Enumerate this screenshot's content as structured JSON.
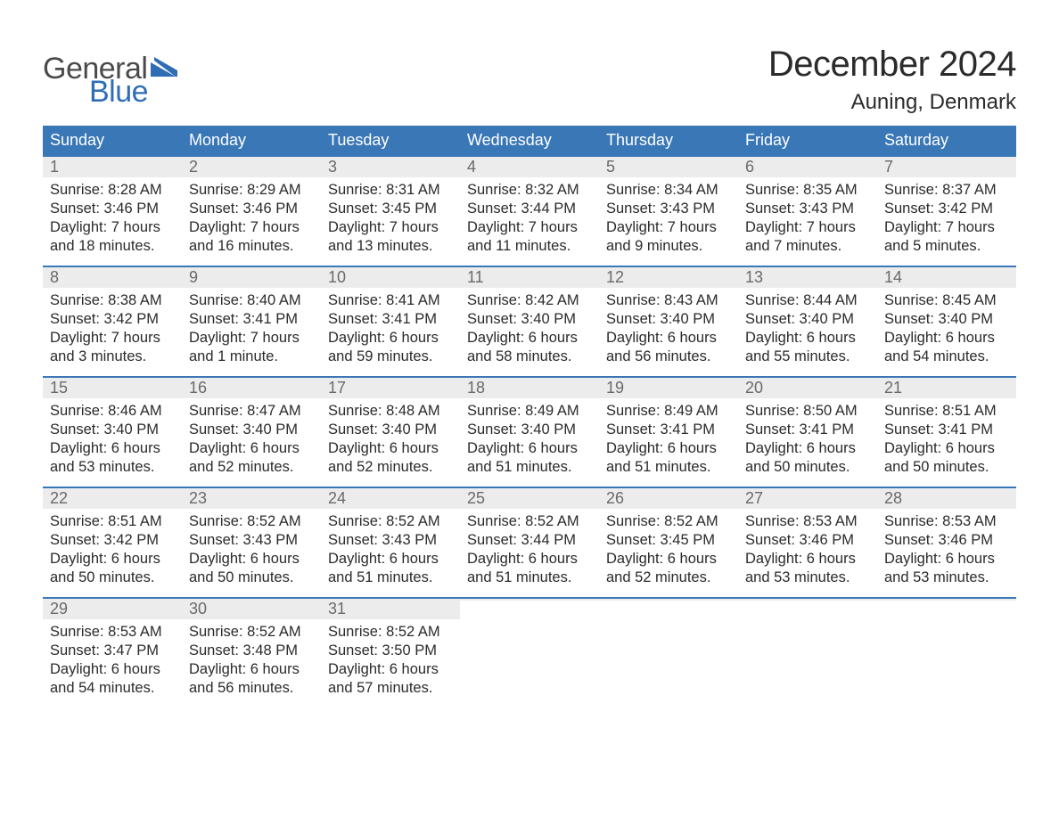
{
  "brand": {
    "word1": "General",
    "word2": "Blue",
    "flag_color": "#2f6eb5",
    "text_gray": "#4a4a4a"
  },
  "title": "December 2024",
  "location": "Auning, Denmark",
  "colors": {
    "header_bg": "#3a77b7",
    "header_text": "#ffffff",
    "daynum_bg": "#ececec",
    "daynum_text": "#6a6a6a",
    "body_text": "#2b2b2b",
    "week_border": "#3a77b7",
    "page_bg": "#ffffff"
  },
  "weekdays": [
    "Sunday",
    "Monday",
    "Tuesday",
    "Wednesday",
    "Thursday",
    "Friday",
    "Saturday"
  ],
  "weeks": [
    [
      {
        "n": "1",
        "sunrise": "8:28 AM",
        "sunset": "3:46 PM",
        "daylight": "7 hours and 18 minutes."
      },
      {
        "n": "2",
        "sunrise": "8:29 AM",
        "sunset": "3:46 PM",
        "daylight": "7 hours and 16 minutes."
      },
      {
        "n": "3",
        "sunrise": "8:31 AM",
        "sunset": "3:45 PM",
        "daylight": "7 hours and 13 minutes."
      },
      {
        "n": "4",
        "sunrise": "8:32 AM",
        "sunset": "3:44 PM",
        "daylight": "7 hours and 11 minutes."
      },
      {
        "n": "5",
        "sunrise": "8:34 AM",
        "sunset": "3:43 PM",
        "daylight": "7 hours and 9 minutes."
      },
      {
        "n": "6",
        "sunrise": "8:35 AM",
        "sunset": "3:43 PM",
        "daylight": "7 hours and 7 minutes."
      },
      {
        "n": "7",
        "sunrise": "8:37 AM",
        "sunset": "3:42 PM",
        "daylight": "7 hours and 5 minutes."
      }
    ],
    [
      {
        "n": "8",
        "sunrise": "8:38 AM",
        "sunset": "3:42 PM",
        "daylight": "7 hours and 3 minutes."
      },
      {
        "n": "9",
        "sunrise": "8:40 AM",
        "sunset": "3:41 PM",
        "daylight": "7 hours and 1 minute."
      },
      {
        "n": "10",
        "sunrise": "8:41 AM",
        "sunset": "3:41 PM",
        "daylight": "6 hours and 59 minutes."
      },
      {
        "n": "11",
        "sunrise": "8:42 AM",
        "sunset": "3:40 PM",
        "daylight": "6 hours and 58 minutes."
      },
      {
        "n": "12",
        "sunrise": "8:43 AM",
        "sunset": "3:40 PM",
        "daylight": "6 hours and 56 minutes."
      },
      {
        "n": "13",
        "sunrise": "8:44 AM",
        "sunset": "3:40 PM",
        "daylight": "6 hours and 55 minutes."
      },
      {
        "n": "14",
        "sunrise": "8:45 AM",
        "sunset": "3:40 PM",
        "daylight": "6 hours and 54 minutes."
      }
    ],
    [
      {
        "n": "15",
        "sunrise": "8:46 AM",
        "sunset": "3:40 PM",
        "daylight": "6 hours and 53 minutes."
      },
      {
        "n": "16",
        "sunrise": "8:47 AM",
        "sunset": "3:40 PM",
        "daylight": "6 hours and 52 minutes."
      },
      {
        "n": "17",
        "sunrise": "8:48 AM",
        "sunset": "3:40 PM",
        "daylight": "6 hours and 52 minutes."
      },
      {
        "n": "18",
        "sunrise": "8:49 AM",
        "sunset": "3:40 PM",
        "daylight": "6 hours and 51 minutes."
      },
      {
        "n": "19",
        "sunrise": "8:49 AM",
        "sunset": "3:41 PM",
        "daylight": "6 hours and 51 minutes."
      },
      {
        "n": "20",
        "sunrise": "8:50 AM",
        "sunset": "3:41 PM",
        "daylight": "6 hours and 50 minutes."
      },
      {
        "n": "21",
        "sunrise": "8:51 AM",
        "sunset": "3:41 PM",
        "daylight": "6 hours and 50 minutes."
      }
    ],
    [
      {
        "n": "22",
        "sunrise": "8:51 AM",
        "sunset": "3:42 PM",
        "daylight": "6 hours and 50 minutes."
      },
      {
        "n": "23",
        "sunrise": "8:52 AM",
        "sunset": "3:43 PM",
        "daylight": "6 hours and 50 minutes."
      },
      {
        "n": "24",
        "sunrise": "8:52 AM",
        "sunset": "3:43 PM",
        "daylight": "6 hours and 51 minutes."
      },
      {
        "n": "25",
        "sunrise": "8:52 AM",
        "sunset": "3:44 PM",
        "daylight": "6 hours and 51 minutes."
      },
      {
        "n": "26",
        "sunrise": "8:52 AM",
        "sunset": "3:45 PM",
        "daylight": "6 hours and 52 minutes."
      },
      {
        "n": "27",
        "sunrise": "8:53 AM",
        "sunset": "3:46 PM",
        "daylight": "6 hours and 53 minutes."
      },
      {
        "n": "28",
        "sunrise": "8:53 AM",
        "sunset": "3:46 PM",
        "daylight": "6 hours and 53 minutes."
      }
    ],
    [
      {
        "n": "29",
        "sunrise": "8:53 AM",
        "sunset": "3:47 PM",
        "daylight": "6 hours and 54 minutes."
      },
      {
        "n": "30",
        "sunrise": "8:52 AM",
        "sunset": "3:48 PM",
        "daylight": "6 hours and 56 minutes."
      },
      {
        "n": "31",
        "sunrise": "8:52 AM",
        "sunset": "3:50 PM",
        "daylight": "6 hours and 57 minutes."
      },
      null,
      null,
      null,
      null
    ]
  ],
  "labels": {
    "sunrise": "Sunrise:",
    "sunset": "Sunset:",
    "daylight": "Daylight:"
  }
}
